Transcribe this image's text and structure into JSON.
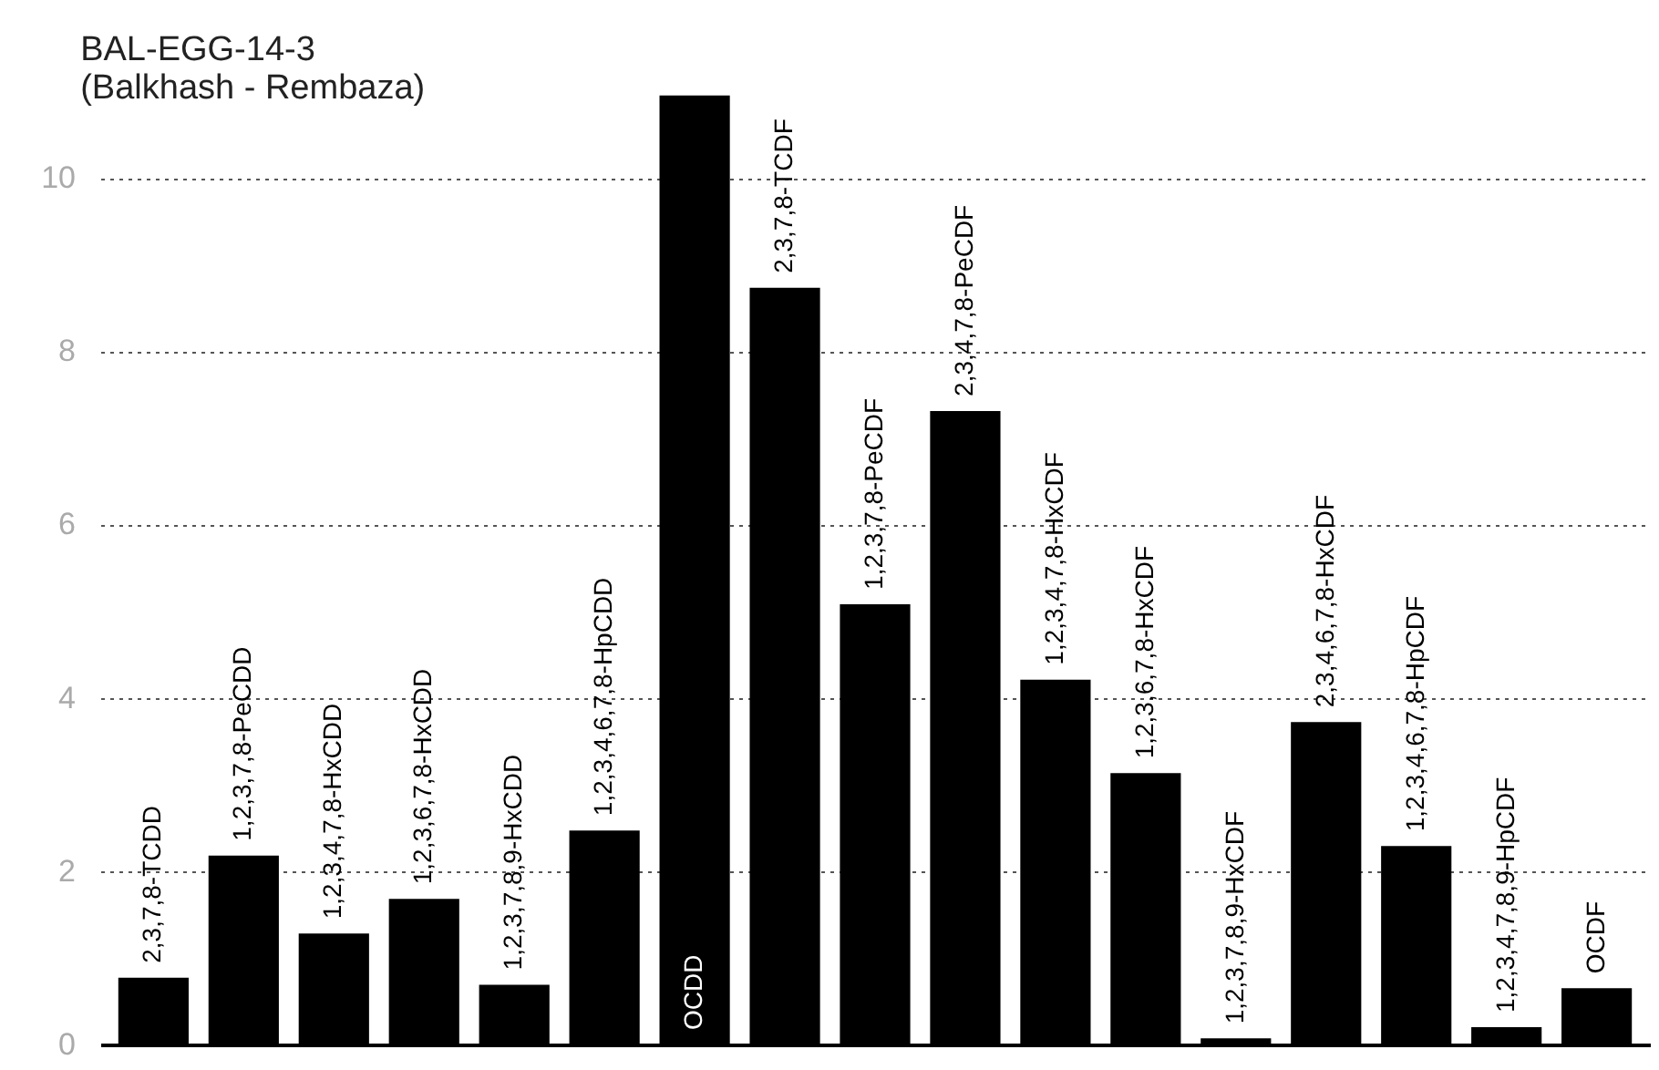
{
  "chart_data": {
    "type": "bar",
    "title": "BAL-EGG-14-3",
    "subtitle": "(Balkhash - Rembaza)",
    "categories": [
      "2,3,7,8-TCDD",
      "1,2,3,7,8-PeCDD",
      "1,2,3,4,7,8-HxCDD",
      "1,2,3,6,7,8-HxCDD",
      "1,2,3,7,8,9-HxCDD",
      "1,2,3,4,6,7,8-HpCDD",
      "OCDD",
      "2,3,7,8-TCDF",
      "1,2,3,7,8-PeCDF",
      "2,3,4,7,8-PeCDF",
      "1,2,3,4,7,8-HxCDF",
      "1,2,3,6,7,8-HxCDF",
      "1,2,3,7,8,9-HxCDF",
      "2,3,4,6,7,8-HxCDF",
      "1,2,3,4,6,7,8-HpCDF",
      "1,2,3,4,7,8,9-HpCDF",
      "OCDF"
    ],
    "values": [
      0.77,
      2.18,
      1.28,
      1.68,
      0.69,
      2.47,
      10.95,
      8.73,
      5.08,
      7.31,
      4.21,
      3.13,
      0.07,
      3.72,
      2.29,
      0.2,
      0.65
    ],
    "color": "#000000",
    "ylim": [
      0,
      11
    ],
    "yticks": [
      0,
      2,
      4,
      6,
      8,
      10
    ],
    "grid": "y"
  }
}
